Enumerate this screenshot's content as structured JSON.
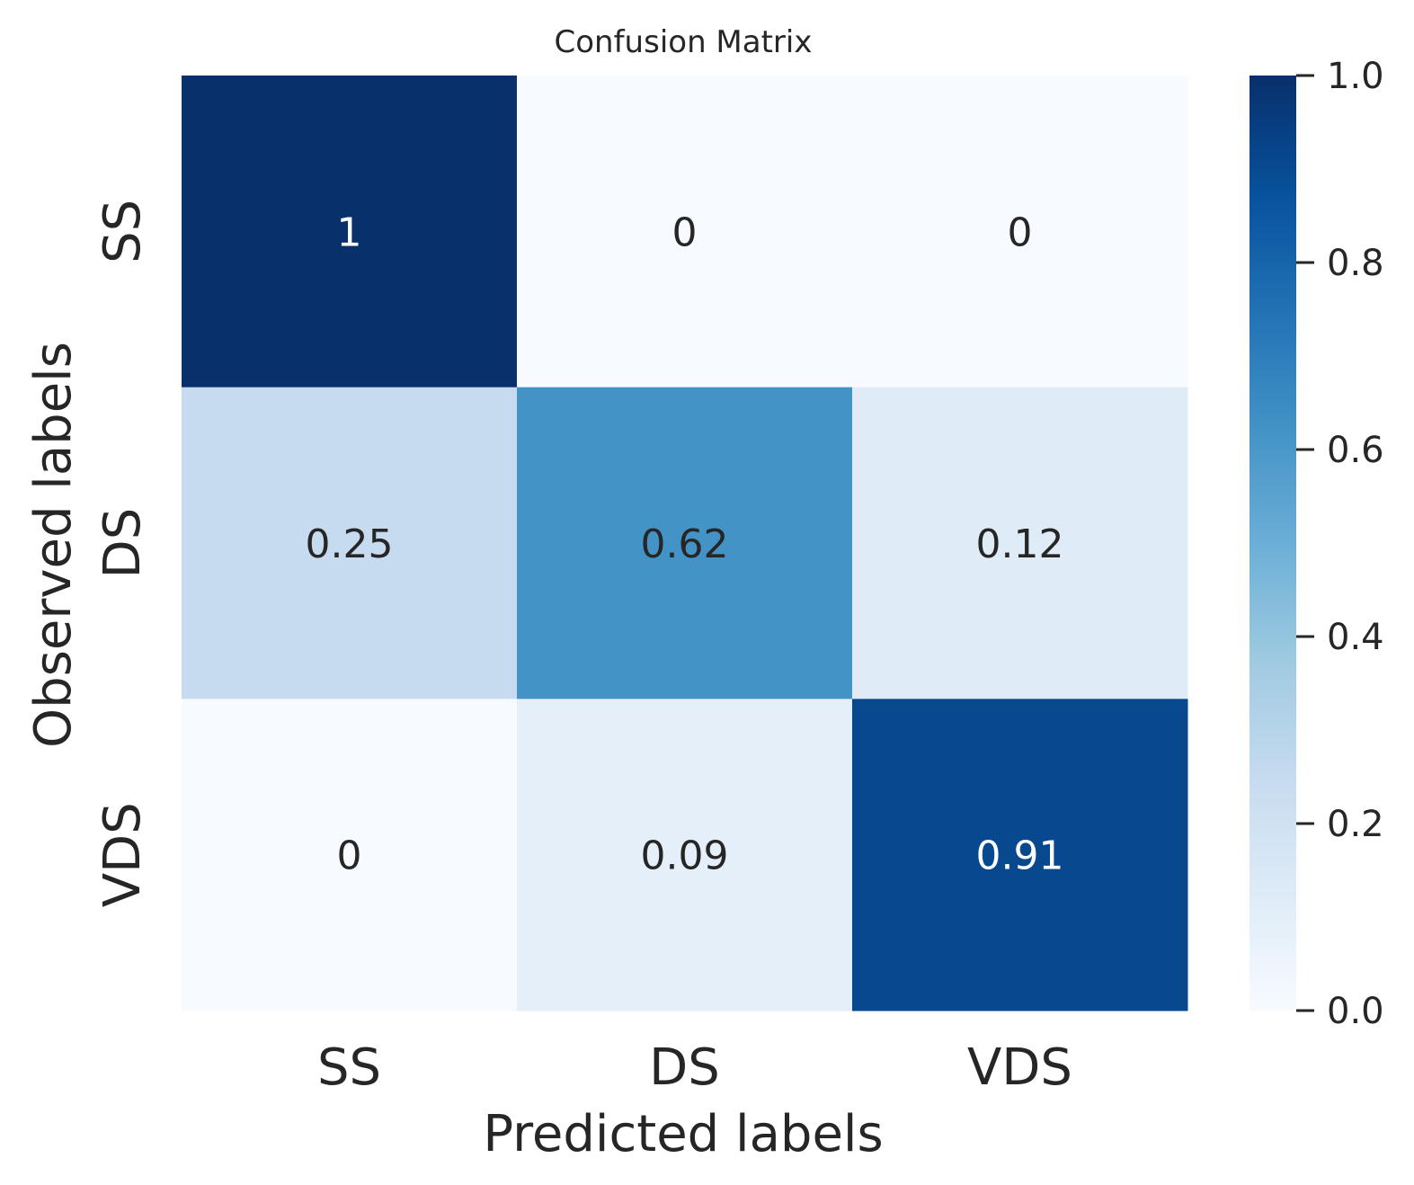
{
  "chart_data": {
    "type": "heatmap",
    "title": "Confusion Matrix",
    "xlabel": "Predicted labels",
    "ylabel": "Observed labels",
    "x_categories": [
      "SS",
      "DS",
      "VDS"
    ],
    "y_categories": [
      "SS",
      "DS",
      "VDS"
    ],
    "values": [
      [
        1,
        0,
        0
      ],
      [
        0.25,
        0.62,
        0.12
      ],
      [
        0,
        0.09,
        0.91
      ]
    ],
    "cell_labels": [
      [
        "1",
        "0",
        "0"
      ],
      [
        "0.25",
        "0.62",
        "0.12"
      ],
      [
        "0",
        "0.09",
        "0.91"
      ]
    ],
    "colorbar": {
      "min": 0.0,
      "max": 1.0,
      "ticks": [
        0.0,
        0.2,
        0.4,
        0.6,
        0.8,
        1.0
      ],
      "tick_labels": [
        "0.0",
        "0.2",
        "0.4",
        "0.6",
        "0.8",
        "1.0"
      ],
      "colormap": "Blues"
    }
  }
}
